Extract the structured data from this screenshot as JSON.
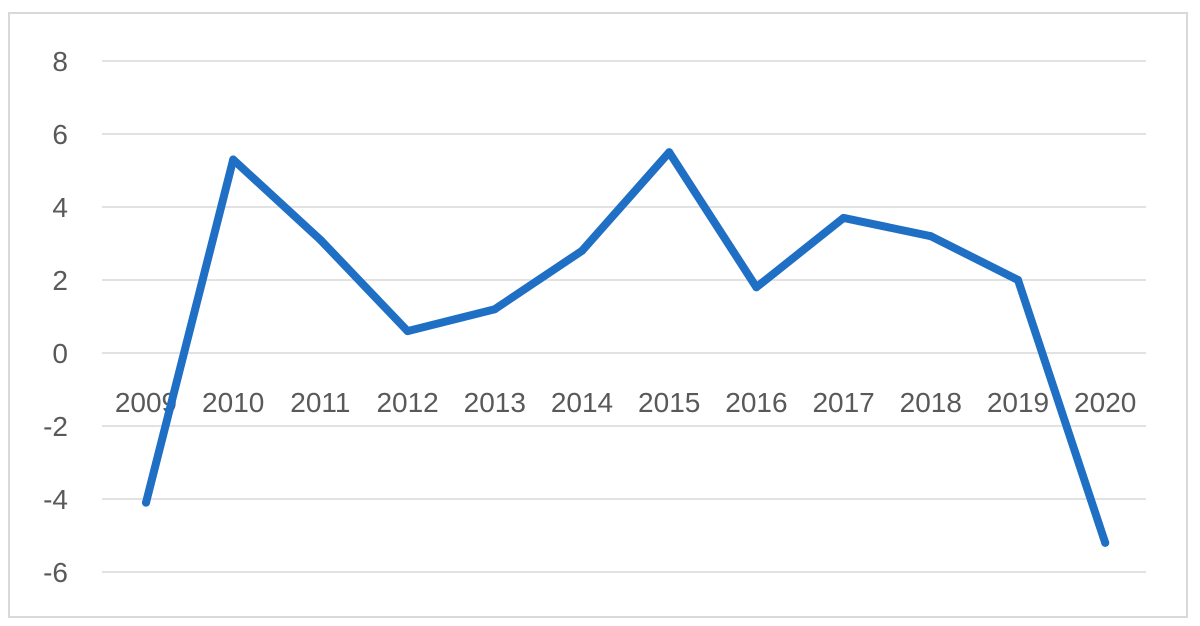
{
  "chart_data": {
    "type": "line",
    "categories": [
      "2009",
      "2010",
      "2011",
      "2012",
      "2013",
      "2014",
      "2015",
      "2016",
      "2017",
      "2018",
      "2019",
      "2020"
    ],
    "series": [
      {
        "values": [
          -4.1,
          5.3,
          3.1,
          0.6,
          1.2,
          2.8,
          5.5,
          1.8,
          3.7,
          3.2,
          2.0,
          -5.2
        ],
        "color": "#1f6fc5"
      }
    ],
    "y_ticks": [
      "8",
      "6",
      "4",
      "2",
      "0",
      "-2",
      "-4",
      "-6"
    ],
    "ylim": [
      -6,
      8
    ],
    "grid": true,
    "legend": "none",
    "x_labels_position": "at-zero-line"
  }
}
